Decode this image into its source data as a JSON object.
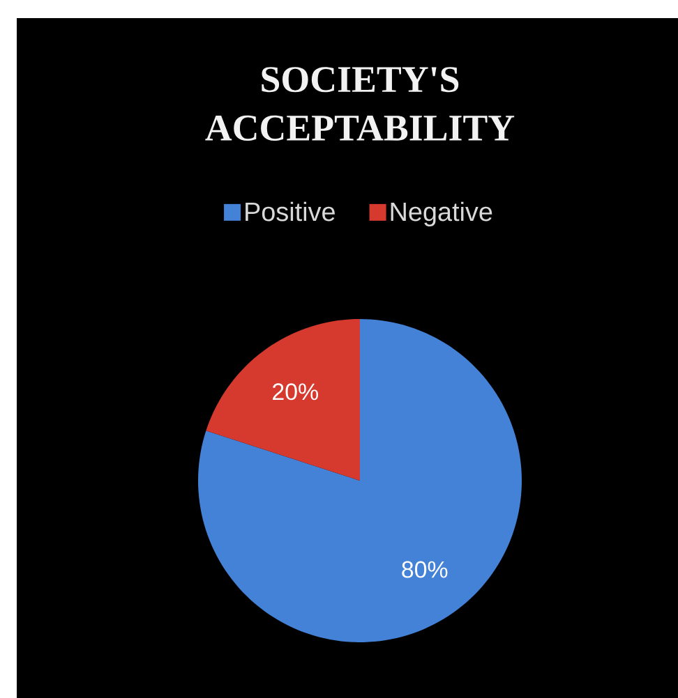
{
  "chart_data": {
    "type": "pie",
    "title": "SOCIETY'S ACCEPTABILITY",
    "categories": [
      "Positive",
      "Negative"
    ],
    "values": [
      80,
      20
    ],
    "colors": [
      "#4382d6",
      "#d63a2e"
    ],
    "value_labels": [
      "80%",
      "20%"
    ],
    "legend": "top"
  }
}
